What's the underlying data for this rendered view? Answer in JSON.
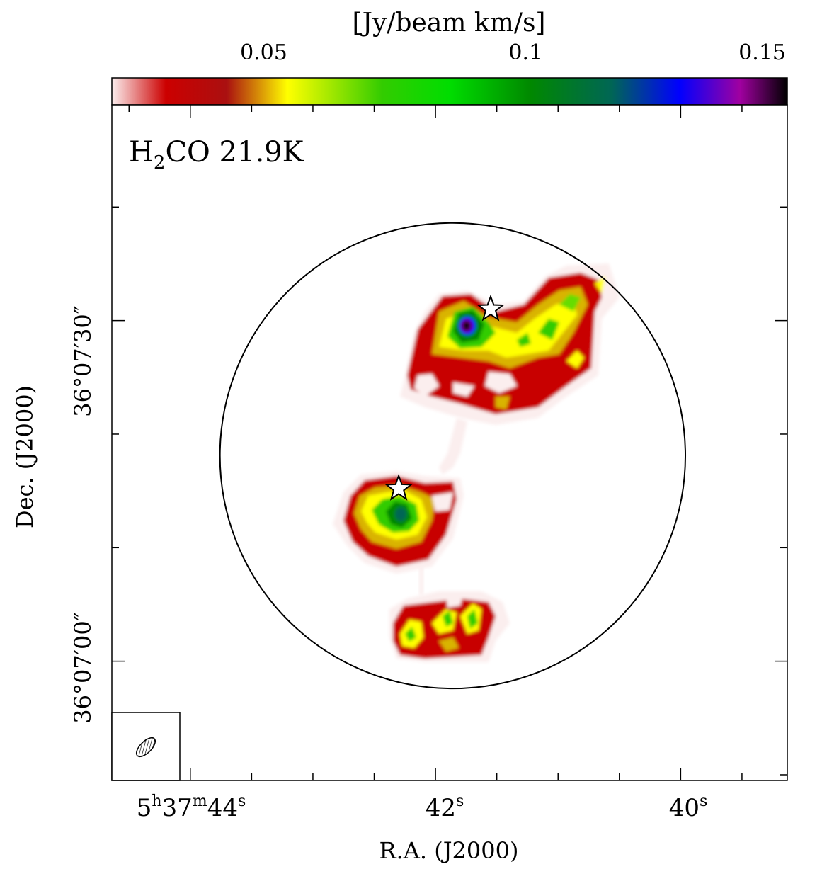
{
  "chart_data": {
    "type": "heatmap",
    "map_label": {
      "prefix": "H",
      "subscript": "2",
      "rest": "CO 21.9K"
    },
    "colorbar": {
      "unit_label": "[Jy/beam km/s]",
      "ticks": [
        "0.05",
        "0.1",
        "0.15"
      ],
      "tick_values": [
        0.05,
        0.1,
        0.15
      ],
      "range": [
        0.021,
        0.15
      ],
      "colormap": [
        "#fbeeee",
        "#cc0000",
        "#ffff00",
        "#00e000",
        "#007700",
        "#0000ff",
        "#a000a0",
        "#000000"
      ]
    },
    "xaxis": {
      "label": "R.A. (J2000)",
      "ticks": [
        {
          "value": 44,
          "main": "5",
          "s1": "h",
          "m": "37",
          "s2": "m",
          "sec": "44",
          "s3": "s"
        },
        {
          "value": 42,
          "main": "42",
          "s3": "s"
        },
        {
          "value": 40,
          "main": "40",
          "s3": "s"
        }
      ],
      "range_seconds": [
        44.64,
        39.13
      ]
    },
    "yaxis": {
      "label": "Dec. (J2000)",
      "ticks": [
        {
          "value": 30,
          "text": "36°07′30″"
        },
        {
          "value": 0,
          "text": "36°07′00″"
        }
      ],
      "range_arcsec": [
        -10.5,
        49
      ]
    },
    "primary_beam_circle": {
      "center_ra_s": 41.86,
      "center_dec_arcsec": 18.1,
      "radius_arcsec": 20.5
    },
    "stars": [
      {
        "ra_s": 41.55,
        "dec_arcsec": 31.0
      },
      {
        "ra_s": 42.3,
        "dec_arcsec": 15.2
      }
    ],
    "emission_regions": [
      {
        "name": "north",
        "center": [
          41.45,
          31.8
        ],
        "peak_value": 0.15,
        "peak_at": [
          41.8,
          32.3
        ]
      },
      {
        "name": "middle",
        "center": [
          42.3,
          14.8
        ],
        "peak_value": 0.085,
        "peak_at": [
          42.28,
          14.9
        ]
      },
      {
        "name": "south",
        "center": [
          42.0,
          2.5
        ],
        "peak_value": 0.062
      }
    ],
    "beam": {
      "shape": "ellipse",
      "hatched": true
    }
  }
}
